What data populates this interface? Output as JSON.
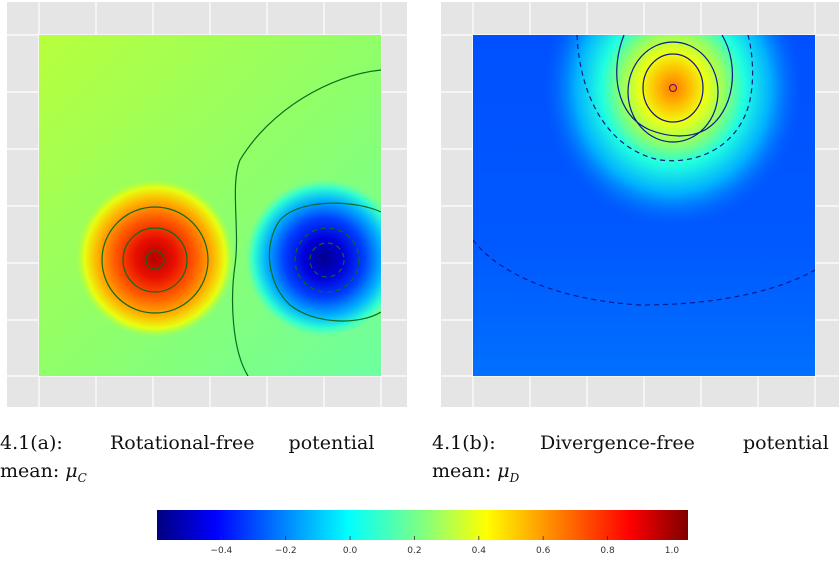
{
  "figure_a": {
    "label": "4.1(a):",
    "title": "Rotational-free potential",
    "mean_prefix": "mean:",
    "mean_symbol": "μ",
    "mean_sub": "C"
  },
  "figure_b": {
    "label": "4.1(b):",
    "title": "Divergence-free potential",
    "mean_prefix": "mean:",
    "mean_symbol": "μ",
    "mean_sub": "D"
  },
  "colorbar": {
    "colormap": "jet",
    "vmin": -0.6,
    "vmax": 1.05,
    "ticks": [
      "−0.4",
      "−0.2",
      "0.0",
      "0.2",
      "0.4",
      "0.6",
      "0.8",
      "1.0"
    ],
    "tick_values": [
      -0.4,
      -0.2,
      0.0,
      0.2,
      0.4,
      0.6,
      0.8,
      1.0
    ]
  },
  "style": {
    "panel_background": "#e5e5e5",
    "grid_color": "#ffffff",
    "contour_color_a": "#0b6b1e",
    "contour_color_b": "#0a1a8c"
  }
}
